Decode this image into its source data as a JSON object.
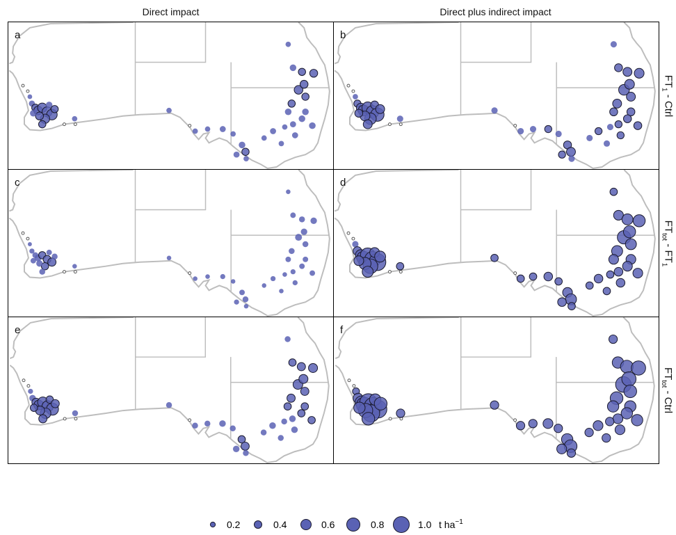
{
  "columns": [
    {
      "title": "Direct impact"
    },
    {
      "title": "Direct plus indirect impact"
    }
  ],
  "rows": [
    {
      "label_main": "FT",
      "label_sub": "1",
      "label_rest": " - Ctrl"
    },
    {
      "label_main": "FT",
      "label_sub": "tot",
      "label_rest": " - FT",
      "label_sub2": "1"
    },
    {
      "label_main": "FT",
      "label_sub": "tot",
      "label_rest": " - Ctrl"
    }
  ],
  "panels": [
    {
      "letter": "a",
      "scale": 1.0
    },
    {
      "letter": "b",
      "scale": 1.35
    },
    {
      "letter": "c",
      "scale": 0.7
    },
    {
      "letter": "d",
      "scale": 1.8
    },
    {
      "letter": "e",
      "scale": 1.2
    },
    {
      "letter": "f",
      "scale": 2.2
    }
  ],
  "legend": {
    "values": [
      "0.2",
      "0.4",
      "0.6",
      "0.8",
      "1.0"
    ],
    "unit_main": "t ha",
    "unit_sup": "−1"
  },
  "colors": {
    "point_fill": "#5a62b4",
    "point_stroke": "#1a1a2e",
    "map_line": "#bdbdbd",
    "zero_point_stroke": "#555555"
  }
}
